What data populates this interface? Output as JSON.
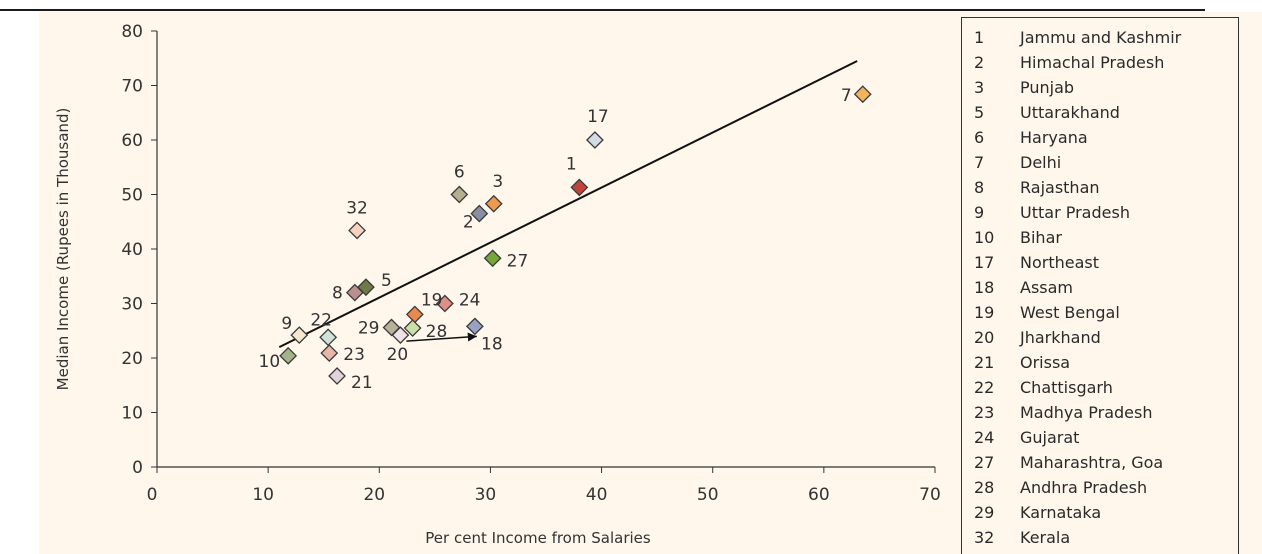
{
  "chart_data": {
    "type": "scatter",
    "title": "",
    "xlabel": "Per cent Income from Salaries",
    "ylabel": "Median Income (Rupees in Thousand)",
    "xlim": [
      0,
      70
    ],
    "ylim": [
      0,
      80
    ],
    "x_ticks": [
      "0",
      "10",
      "20",
      "30",
      "40",
      "50",
      "60",
      "70"
    ],
    "y_ticks": [
      "0",
      "10",
      "20",
      "30",
      "40",
      "50",
      "60",
      "70",
      "80"
    ],
    "grid": false,
    "legend_position": "right",
    "trendline": {
      "x": [
        11,
        63
      ],
      "y": [
        22,
        74.5
      ]
    },
    "points": [
      {
        "id": "1",
        "state": "Jammu and Kashmir",
        "x": 38.0,
        "y": 51.3,
        "color": "#c0443a"
      },
      {
        "id": "2",
        "state": "Himachal Pradesh",
        "x": 29.0,
        "y": 46.5,
        "color": "#8a8fa3"
      },
      {
        "id": "3",
        "state": "Punjab",
        "x": 30.3,
        "y": 48.3,
        "color": "#ec9a4e"
      },
      {
        "id": "5",
        "state": "Uttarakhand",
        "x": 18.8,
        "y": 33.0,
        "color": "#6f7b47"
      },
      {
        "id": "6",
        "state": "Haryana",
        "x": 27.2,
        "y": 50.0,
        "color": "#b3b08c"
      },
      {
        "id": "7",
        "state": "Delhi",
        "x": 63.5,
        "y": 68.4,
        "color": "#f1b35c"
      },
      {
        "id": "8",
        "state": "Rajasthan",
        "x": 17.8,
        "y": 32.0,
        "color": "#b8918f"
      },
      {
        "id": "9",
        "state": "Uttar Pradesh",
        "x": 12.8,
        "y": 24.2,
        "color": "#f6e7cf"
      },
      {
        "id": "10",
        "state": "Bihar",
        "x": 11.8,
        "y": 20.4,
        "color": "#a5b38a"
      },
      {
        "id": "17",
        "state": "Northeast",
        "x": 39.4,
        "y": 60.0,
        "color": "#d4dbe8"
      },
      {
        "id": "18",
        "state": "Assam",
        "x": 28.6,
        "y": 25.8,
        "color": "#98a3c4"
      },
      {
        "id": "19",
        "state": "West Bengal",
        "x": 23.2,
        "y": 28.0,
        "color": "#e8894f"
      },
      {
        "id": "20",
        "state": "Jharkhand",
        "x": 21.9,
        "y": 24.2,
        "color": "#ede3e7"
      },
      {
        "id": "21",
        "state": "Orissa",
        "x": 16.2,
        "y": 16.7,
        "color": "#e2d2d9"
      },
      {
        "id": "22",
        "state": "Chattisgarh",
        "x": 15.4,
        "y": 23.8,
        "color": "#d1e3d8"
      },
      {
        "id": "23",
        "state": "Madhya Pradesh",
        "x": 15.5,
        "y": 20.9,
        "color": "#e9b4aa"
      },
      {
        "id": "24",
        "state": "Gujarat",
        "x": 25.9,
        "y": 30.0,
        "color": "#df8e88"
      },
      {
        "id": "27",
        "state": "Maharashtra, Goa",
        "x": 30.2,
        "y": 38.3,
        "color": "#77a63a"
      },
      {
        "id": "28",
        "state": "Andhra Pradesh",
        "x": 23.0,
        "y": 25.5,
        "color": "#cbe0a8"
      },
      {
        "id": "29",
        "state": "Karnataka",
        "x": 21.1,
        "y": 25.6,
        "color": "#b8b29a"
      },
      {
        "id": "32",
        "state": "Kerala",
        "x": 18.0,
        "y": 43.4,
        "color": "#f6d2bf"
      }
    ],
    "point_labels": [
      {
        "text": "1",
        "x": 38.0,
        "y": 51.3
      },
      {
        "text": "2",
        "x": 29.0,
        "y": 46.5
      },
      {
        "text": "3",
        "x": 30.3,
        "y": 48.3
      },
      {
        "text": "5",
        "x": 18.8,
        "y": 33.0
      },
      {
        "text": "6",
        "x": 27.2,
        "y": 50.0
      },
      {
        "text": "7",
        "x": 63.5,
        "y": 68.4
      },
      {
        "text": "8",
        "x": 17.8,
        "y": 32.0
      },
      {
        "text": "9",
        "x": 12.8,
        "y": 24.2
      },
      {
        "text": "10",
        "x": 11.8,
        "y": 20.4
      },
      {
        "text": "17",
        "x": 39.4,
        "y": 60.0
      },
      {
        "text": "18",
        "x": 28.6,
        "y": 25.8
      },
      {
        "text": "19",
        "x": 23.2,
        "y": 28.0
      },
      {
        "text": "20",
        "x": 21.9,
        "y": 24.2
      },
      {
        "text": "21",
        "x": 16.2,
        "y": 16.7
      },
      {
        "text": "22",
        "x": 15.4,
        "y": 23.8
      },
      {
        "text": "23",
        "x": 15.5,
        "y": 20.9
      },
      {
        "text": "24",
        "x": 25.9,
        "y": 30.0
      },
      {
        "text": "27",
        "x": 30.2,
        "y": 38.3
      },
      {
        "text": "28",
        "x": 23.0,
        "y": 25.5
      },
      {
        "text": "29",
        "x": 21.1,
        "y": 25.6
      },
      {
        "text": "32",
        "x": 18.0,
        "y": 43.4
      }
    ]
  },
  "legend": [
    {
      "num": "1",
      "name": "Jammu and Kashmir"
    },
    {
      "num": "2",
      "name": "Himachal Pradesh"
    },
    {
      "num": "3",
      "name": "Punjab"
    },
    {
      "num": "5",
      "name": "Uttarakhand"
    },
    {
      "num": "6",
      "name": "Haryana"
    },
    {
      "num": "7",
      "name": "Delhi"
    },
    {
      "num": "8",
      "name": "Rajasthan"
    },
    {
      "num": "9",
      "name": "Uttar Pradesh"
    },
    {
      "num": "10",
      "name": "Bihar"
    },
    {
      "num": "17",
      "name": "Northeast"
    },
    {
      "num": "18",
      "name": "Assam"
    },
    {
      "num": "19",
      "name": "West Bengal"
    },
    {
      "num": "20",
      "name": "Jharkhand"
    },
    {
      "num": "21",
      "name": "Orissa"
    },
    {
      "num": "22",
      "name": "Chattisgarh"
    },
    {
      "num": "23",
      "name": "Madhya Pradesh"
    },
    {
      "num": "24",
      "name": "Gujarat"
    },
    {
      "num": "27",
      "name": "Maharashtra, Goa"
    },
    {
      "num": "28",
      "name": "Andhra Pradesh"
    },
    {
      "num": "29",
      "name": "Karnataka"
    },
    {
      "num": "32",
      "name": "Kerala"
    }
  ],
  "colors": {
    "panel_background": "#fff7ec",
    "axis": "#333333",
    "trendline": "#111111"
  }
}
